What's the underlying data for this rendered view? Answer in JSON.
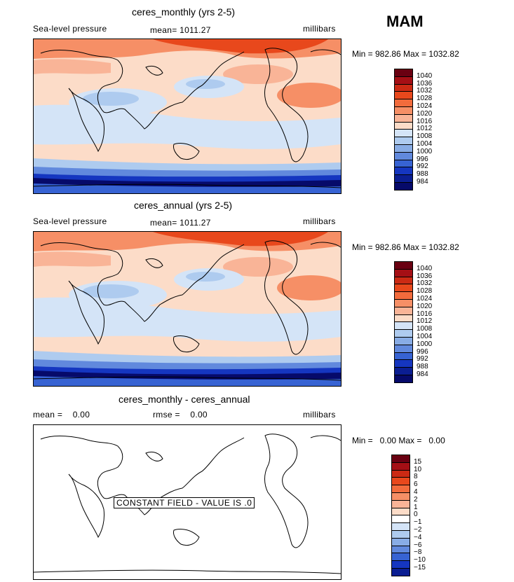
{
  "season": "MAM",
  "panels": [
    {
      "title": "ceres_monthly (yrs 2-5)",
      "left_label": "Sea-level pressure",
      "center_label": "mean= 1011.27",
      "right_label": "millibars",
      "minmax": "Min = 982.86 Max = 1032.82",
      "colorbar_labels": [
        "1040",
        "1036",
        "1032",
        "1028",
        "1024",
        "1020",
        "1016",
        "1012",
        "1008",
        "1004",
        "1000",
        "996",
        "992",
        "988",
        "984"
      ]
    },
    {
      "title": "ceres_annual (yrs 2-5)",
      "left_label": "Sea-level pressure",
      "center_label": "mean= 1011.27",
      "right_label": "millibars",
      "minmax": "Min = 982.86 Max = 1032.82",
      "colorbar_labels": [
        "1040",
        "1036",
        "1032",
        "1028",
        "1024",
        "1020",
        "1016",
        "1012",
        "1008",
        "1004",
        "1000",
        "996",
        "992",
        "988",
        "984"
      ]
    },
    {
      "title": "ceres_monthly - ceres_annual",
      "left_label": "mean =    0.00",
      "center_label": "rmse =    0.00",
      "right_label": "millibars",
      "minmax": "Min =   0.00 Max =   0.00",
      "constant_field": "CONSTANT FIELD - VALUE IS .0",
      "colorbar_labels": [
        "15",
        "10",
        "8",
        "6",
        "4",
        "2",
        "1",
        "0",
        "−1",
        "−2",
        "−4",
        "−6",
        "−8",
        "−10",
        "−15"
      ]
    }
  ],
  "colors": {
    "scale": [
      "#6a0011",
      "#a50f15",
      "#cb2a14",
      "#e8481c",
      "#f26b3c",
      "#f68f66",
      "#f9b497",
      "#fcdcc8",
      "#ffffff",
      "#d4e4f7",
      "#aecbef",
      "#88ace5",
      "#6189dd",
      "#3763d3",
      "#1536c0",
      "#0b1e92",
      "#060a6a"
    ]
  }
}
